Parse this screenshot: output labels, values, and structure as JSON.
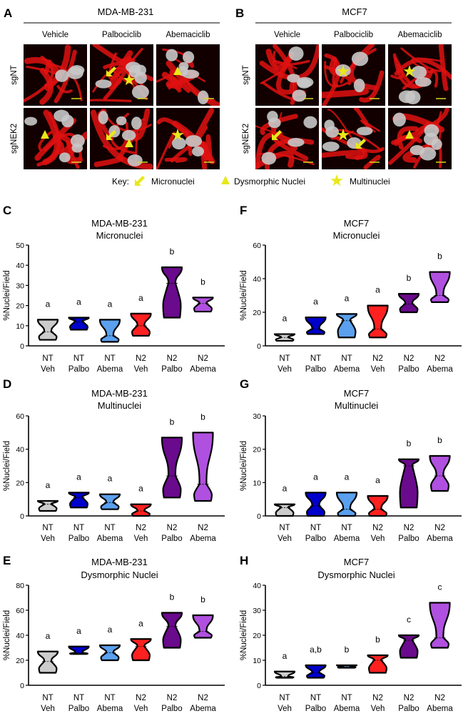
{
  "micrographs": [
    {
      "panel": "A",
      "cell_line": "MDA-MB-231",
      "columns": [
        "Vehicle",
        "Palbociclib",
        "Abemaciclib"
      ],
      "rows": [
        "sgNT",
        "sgNEK2"
      ],
      "markers": [
        [
          "none",
          "arrow,star",
          "triangle"
        ],
        [
          "triangle",
          "arrow,triangle",
          "star"
        ]
      ]
    },
    {
      "panel": "B",
      "cell_line": "MCF7",
      "columns": [
        "Vehicle",
        "Palbociclib",
        "Abemaciclib"
      ],
      "rows": [
        "sgNT",
        "sgNEK2"
      ],
      "markers": [
        [
          "none",
          "star",
          "star"
        ],
        [
          "arrow",
          "star,arrow",
          "triangle"
        ]
      ]
    }
  ],
  "key": {
    "label": "Key:",
    "items": [
      {
        "icon": "arrow-icon",
        "label": "Micronuclei"
      },
      {
        "icon": "triangle-icon",
        "label": "Dysmorphic Nuclei"
      },
      {
        "icon": "star-icon",
        "label": "Multinuclei"
      }
    ],
    "color": "#e8e81a"
  },
  "colors": {
    "stain": "#e01010",
    "nuclei": "#c8c8c8",
    "scale_bar": "#d8d820",
    "groups": [
      "#cccccc",
      "#0000cc",
      "#5aa0ee",
      "#ff2020",
      "#6a0a8c",
      "#b050e0"
    ]
  },
  "chart_data": [
    {
      "panel": "C",
      "type": "violin",
      "title": [
        "MDA-MB-231",
        "Micronuclei"
      ],
      "ylabel": "%Nuclei/Field",
      "ylim": [
        0,
        50
      ],
      "yticks": [
        0,
        10,
        20,
        30,
        40,
        50
      ],
      "categories": [
        [
          "NT",
          "Veh"
        ],
        [
          "NT",
          "Palbo"
        ],
        [
          "NT",
          "Abema"
        ],
        [
          "N2",
          "Veh"
        ],
        [
          "N2",
          "Palbo"
        ],
        [
          "N2",
          "Abema"
        ]
      ],
      "min": [
        3,
        8,
        2,
        5,
        14,
        17
      ],
      "median": [
        7,
        12,
        5,
        10,
        31,
        21
      ],
      "max": [
        13,
        14,
        13,
        16,
        39,
        24
      ],
      "letters": [
        "a",
        "a",
        "a",
        "a",
        "b",
        "b"
      ]
    },
    {
      "panel": "D",
      "type": "violin",
      "title": [
        "MDA-MB-231",
        "Multinuclei"
      ],
      "ylabel": "%Nuclei/Field",
      "ylim": [
        0,
        60
      ],
      "yticks": [
        0,
        20,
        40,
        60
      ],
      "categories": [
        [
          "NT",
          "Veh"
        ],
        [
          "NT",
          "Palbo"
        ],
        [
          "NT",
          "Abema"
        ],
        [
          "N2",
          "Veh"
        ],
        [
          "N2",
          "Palbo"
        ],
        [
          "N2",
          "Abema"
        ]
      ],
      "min": [
        3,
        5,
        4,
        0,
        11,
        9
      ],
      "median": [
        7,
        11,
        8,
        3,
        24,
        19
      ],
      "max": [
        9,
        14,
        13,
        7,
        47,
        50
      ],
      "letters": [
        "a",
        "a",
        "a",
        "a",
        "b",
        "b"
      ]
    },
    {
      "panel": "E",
      "type": "violin",
      "title": [
        "MDA-MB-231",
        "Dysmorphic Nuclei"
      ],
      "ylabel": "%Nuclei/Field",
      "ylim": [
        0,
        80
      ],
      "yticks": [
        0,
        20,
        40,
        60,
        80
      ],
      "categories": [
        [
          "NT",
          "Veh"
        ],
        [
          "NT",
          "Palbo"
        ],
        [
          "NT",
          "Abema"
        ],
        [
          "N2",
          "Veh"
        ],
        [
          "N2",
          "Palbo"
        ],
        [
          "N2",
          "Abema"
        ]
      ],
      "min": [
        10,
        25,
        20,
        20,
        30,
        38
      ],
      "median": [
        19,
        26,
        26,
        31,
        47,
        43
      ],
      "max": [
        27,
        31,
        32,
        37,
        58,
        56
      ],
      "letters": [
        "a",
        "a",
        "a",
        "a",
        "b",
        "b"
      ]
    },
    {
      "panel": "F",
      "type": "violin",
      "title": [
        "MCF7",
        "Micronuclei"
      ],
      "ylabel": "%Nuclei/Field",
      "ylim": [
        0,
        60
      ],
      "yticks": [
        0,
        20,
        40,
        60
      ],
      "categories": [
        [
          "NT",
          "Veh"
        ],
        [
          "NT",
          "Palbo"
        ],
        [
          "NT",
          "Abema"
        ],
        [
          "N2",
          "Veh"
        ],
        [
          "N2",
          "Palbo"
        ],
        [
          "N2",
          "Abema"
        ]
      ],
      "min": [
        3,
        7,
        5,
        5,
        20,
        26
      ],
      "median": [
        5,
        10,
        15,
        10,
        25,
        30
      ],
      "max": [
        7,
        17,
        19,
        24,
        31,
        44
      ],
      "letters": [
        "a",
        "a",
        "a",
        "a",
        "b",
        "b"
      ]
    },
    {
      "panel": "G",
      "type": "violin",
      "title": [
        "MCF7",
        "Multinuclei"
      ],
      "ylabel": "%Nuclei/Field",
      "ylim": [
        0,
        30
      ],
      "yticks": [
        0,
        10,
        20,
        30
      ],
      "categories": [
        [
          "NT",
          "Veh"
        ],
        [
          "NT",
          "Palbo"
        ],
        [
          "NT",
          "Abema"
        ],
        [
          "N2",
          "Veh"
        ],
        [
          "N2",
          "Palbo"
        ],
        [
          "N2",
          "Abema"
        ]
      ],
      "min": [
        0,
        0,
        0,
        0,
        2.5,
        7.5
      ],
      "median": [
        2.5,
        3,
        2,
        2,
        15,
        12
      ],
      "max": [
        3.5,
        7,
        7,
        6,
        17,
        18
      ],
      "letters": [
        "a",
        "a",
        "a",
        "a",
        "b",
        "b"
      ]
    },
    {
      "panel": "H",
      "type": "violin",
      "title": [
        "MCF7",
        "Dysmorphic Nuclei"
      ],
      "ylabel": "%Nuclei/Field",
      "ylim": [
        0,
        40
      ],
      "yticks": [
        0,
        10,
        20,
        30,
        40
      ],
      "categories": [
        [
          "NT",
          "Veh"
        ],
        [
          "NT",
          "Palbo"
        ],
        [
          "NT",
          "Abema"
        ],
        [
          "N2",
          "Veh"
        ],
        [
          "N2",
          "Palbo"
        ],
        [
          "N2",
          "Abema"
        ]
      ],
      "min": [
        3,
        3,
        7,
        5,
        11,
        15
      ],
      "median": [
        3.5,
        5,
        7.5,
        10,
        18,
        19
      ],
      "max": [
        5.5,
        8,
        8,
        12,
        20,
        33
      ],
      "letters": [
        "a",
        "a,b",
        "b",
        "b",
        "c",
        "c"
      ]
    }
  ]
}
